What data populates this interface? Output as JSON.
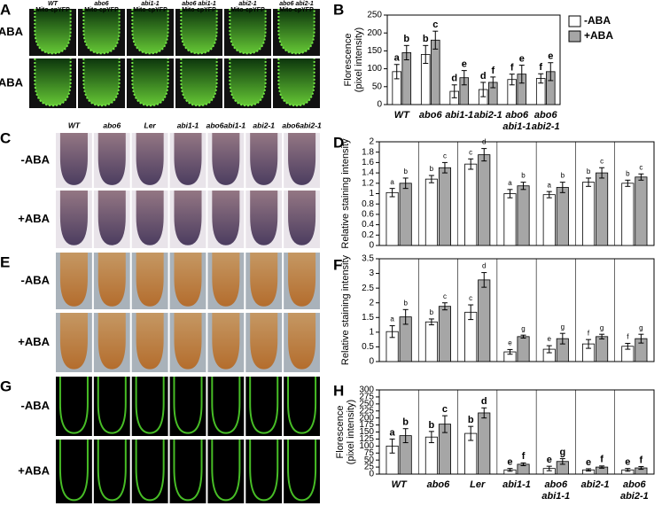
{
  "image_panels": [
    {
      "label": "A",
      "rows": [
        "-ABA",
        "+ABA"
      ],
      "columns": [
        [
          "WT",
          "Mito-cpYFP"
        ],
        [
          "abo6",
          "Mito-cpYFP"
        ],
        [
          "abi1-1",
          "Mito-cpYFP"
        ],
        [
          "abo6 abi1-1",
          "Mito-cpYFP"
        ],
        [
          "abi2-1",
          "Mito-cpYFP"
        ],
        [
          "abo6 abi2-1",
          "Mito-cpYFP"
        ]
      ]
    },
    {
      "label": "C",
      "rows": [
        "-ABA",
        "+ABA"
      ],
      "columns": [
        "WT",
        "abo6",
        "Ler",
        "abi1-1",
        "abo6abi1-1",
        "abi2-1",
        "abo6abi2-1"
      ]
    },
    {
      "label": "E",
      "rows": [
        "-ABA",
        "+ABA"
      ]
    },
    {
      "label": "G",
      "rows": [
        "-ABA",
        "+ABA"
      ]
    }
  ],
  "chart_data": [
    {
      "type": "bar",
      "label": "B",
      "y_label": [
        "Florescence",
        "(pixel intensity)"
      ],
      "categories": [
        "WT",
        "abo6",
        "abi1-1",
        "abi2-1",
        [
          "abo6",
          "abi1-1"
        ],
        [
          "abo6",
          "abi2-1"
        ]
      ],
      "ylim": [
        0,
        250
      ],
      "yticks": [
        0,
        50,
        100,
        150,
        200,
        250
      ],
      "legend": "upper-right",
      "group_dividers": false,
      "series": [
        {
          "name": "-ABA",
          "color": "#ffffff",
          "values": [
            92,
            140,
            37,
            42,
            70,
            73
          ],
          "errors": [
            20,
            25,
            18,
            20,
            15,
            13
          ],
          "letters": [
            "a",
            "b",
            "d",
            "d",
            "f",
            "f"
          ]
        },
        {
          "name": "+ABA",
          "color": "#a6a6a6",
          "values": [
            145,
            180,
            75,
            62,
            85,
            92
          ],
          "errors": [
            20,
            25,
            20,
            15,
            25,
            25
          ],
          "letters": [
            "b",
            "c",
            "e",
            "f",
            "e",
            "e"
          ]
        }
      ]
    },
    {
      "type": "bar",
      "label": "D",
      "y_label": [
        "Relative staining intensity"
      ],
      "ylim": [
        0,
        2
      ],
      "yticks": [
        0,
        0.2,
        0.4,
        0.6,
        0.8,
        1,
        1.2,
        1.4,
        1.6,
        1.8,
        2
      ],
      "group_dividers": true,
      "series": [
        {
          "color": "#ffffff",
          "values": [
            1.02,
            1.28,
            1.57,
            1.0,
            0.98,
            1.22,
            1.2
          ],
          "errors": [
            0.08,
            0.07,
            0.1,
            0.08,
            0.06,
            0.08,
            0.06
          ],
          "letters": [
            "a",
            "b",
            "c",
            "a",
            "a",
            "b",
            "b"
          ]
        },
        {
          "color": "#a6a6a6",
          "values": [
            1.2,
            1.5,
            1.75,
            1.15,
            1.12,
            1.4,
            1.32
          ],
          "errors": [
            0.1,
            0.1,
            0.12,
            0.07,
            0.1,
            0.1,
            0.06
          ],
          "letters": [
            "b",
            "c",
            "d",
            "b",
            "b",
            "c",
            "c"
          ]
        }
      ]
    },
    {
      "type": "bar",
      "label": "F",
      "y_label": [
        "Relative staining intensity"
      ],
      "ylim": [
        0,
        3.5
      ],
      "yticks": [
        0,
        0.5,
        1,
        1.5,
        2,
        2.5,
        3,
        3.5
      ],
      "group_dividers": true,
      "series": [
        {
          "color": "#ffffff",
          "values": [
            1.02,
            1.35,
            1.68,
            0.33,
            0.42,
            0.6,
            0.52
          ],
          "errors": [
            0.2,
            0.1,
            0.25,
            0.08,
            0.12,
            0.15,
            0.1
          ],
          "letters": [
            "a",
            "b",
            "c",
            "e",
            "e",
            "f",
            "f"
          ]
        },
        {
          "color": "#a6a6a6",
          "values": [
            1.52,
            1.88,
            2.78,
            0.85,
            0.78,
            0.85,
            0.78
          ],
          "errors": [
            0.25,
            0.12,
            0.25,
            0.05,
            0.18,
            0.08,
            0.15
          ],
          "letters": [
            "b",
            "c",
            "d",
            "g",
            "g",
            "g",
            "g"
          ]
        }
      ]
    },
    {
      "type": "bar",
      "label": "H",
      "y_label": [
        "Florescence",
        "(pixel intensity)"
      ],
      "categories": [
        "WT",
        "abo6",
        "Ler",
        "abi1-1",
        [
          "abo6",
          "abi1-1"
        ],
        "abi2-1",
        [
          "abo6",
          "abi2-1"
        ]
      ],
      "ylim": [
        0,
        300
      ],
      "yticks": [
        0,
        25,
        50,
        75,
        100,
        125,
        150,
        175,
        200,
        225,
        250,
        275,
        300
      ],
      "group_dividers": true,
      "series": [
        {
          "color": "#ffffff",
          "values": [
            100,
            132,
            145,
            15,
            20,
            15,
            15
          ],
          "errors": [
            25,
            20,
            25,
            5,
            8,
            4,
            5
          ],
          "letters": [
            "a",
            "b",
            "b",
            "e",
            "e",
            "e",
            "e"
          ]
        },
        {
          "color": "#a6a6a6",
          "values": [
            137,
            178,
            218,
            35,
            45,
            25,
            22
          ],
          "errors": [
            25,
            30,
            18,
            5,
            10,
            4,
            5
          ],
          "letters": [
            "b",
            "c",
            "d",
            "f",
            "g",
            "f",
            "f"
          ]
        }
      ]
    }
  ]
}
